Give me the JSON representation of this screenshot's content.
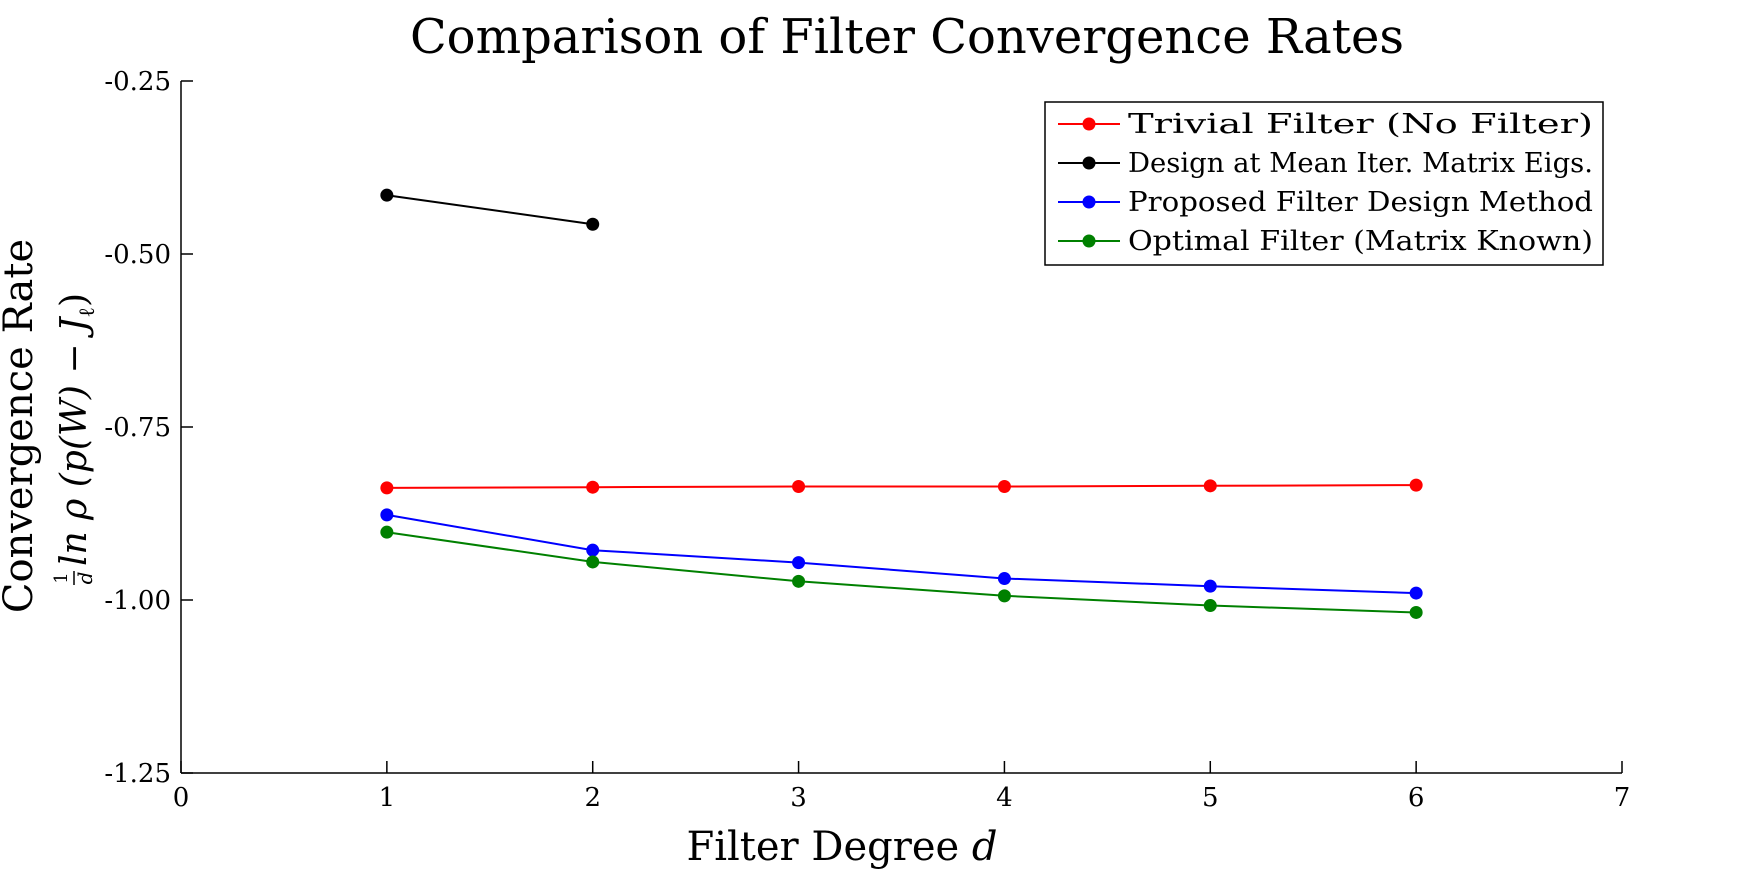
{
  "chart_data": {
    "type": "line",
    "title": "Comparison of Filter Convergence Rates",
    "xlabel": "Filter Degree d",
    "xlabel_parts": {
      "text": "Filter Degree ",
      "var": "d"
    },
    "ylabel": "Convergence Rate",
    "ylabel_formula": "(1/d) ln ρ(p(W) − Jℓ)",
    "ylabel_formula_parts": {
      "num": "1",
      "den": "d",
      "body": "ln ρ (p(W) − J",
      "sub": "ℓ",
      "close": ")"
    },
    "xlim": [
      0,
      7
    ],
    "ylim": [
      -1.25,
      -0.25
    ],
    "xticks": [
      0,
      1,
      2,
      3,
      4,
      5,
      6,
      7
    ],
    "xtick_labels": [
      "0",
      "1",
      "2",
      "3",
      "4",
      "5",
      "6",
      "7"
    ],
    "yticks": [
      -0.25,
      -0.5,
      -0.75,
      -1.0,
      -1.25
    ],
    "ytick_labels": [
      "-0.25",
      "-0.50",
      "-0.75",
      "-1.00",
      "-1.25"
    ],
    "grid": false,
    "legend_position": "top-right",
    "series": [
      {
        "name": "Trivial Filter (No Filter)",
        "color": "#ff0000",
        "x": [
          1,
          2,
          3,
          4,
          5,
          6
        ],
        "y": [
          -0.838,
          -0.837,
          -0.836,
          -0.836,
          -0.835,
          -0.834
        ]
      },
      {
        "name": "Design at Mean Iter. Matrix Eigs.",
        "color": "#000000",
        "x": [
          1,
          2
        ],
        "y": [
          -0.415,
          -0.457
        ]
      },
      {
        "name": "Proposed Filter Design Method",
        "color": "#0000ff",
        "x": [
          1,
          2,
          3,
          4,
          5,
          6
        ],
        "y": [
          -0.877,
          -0.928,
          -0.946,
          -0.969,
          -0.98,
          -0.99
        ]
      },
      {
        "name": "Optimal Filter (Matrix Known)",
        "color": "#008000",
        "x": [
          1,
          2,
          3,
          4,
          5,
          6
        ],
        "y": [
          -0.902,
          -0.945,
          -0.973,
          -0.994,
          -1.008,
          -1.018
        ]
      }
    ]
  }
}
